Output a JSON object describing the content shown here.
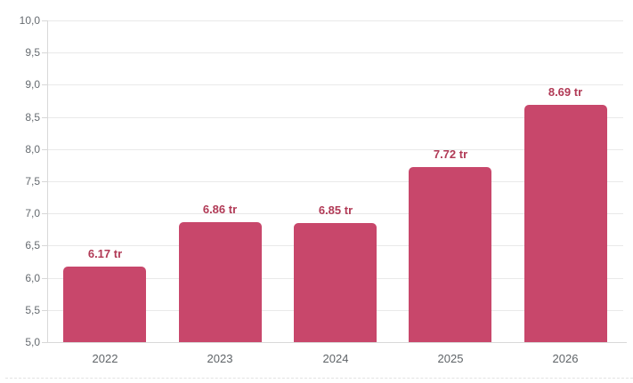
{
  "chart_data": {
    "type": "bar",
    "title": "",
    "xlabel": "",
    "ylabel": "",
    "categories": [
      "2022",
      "2023",
      "2024",
      "2025",
      "2026"
    ],
    "values": [
      6.17,
      6.86,
      6.85,
      7.72,
      8.69
    ],
    "value_labels": [
      "6.17 tr",
      "6.86 tr",
      "6.85 tr",
      "7.72 tr",
      "8.69 tr"
    ],
    "ylim": [
      5.0,
      10.0
    ],
    "ytick_step": 0.5,
    "ytick_labels": [
      "5,0",
      "5,5",
      "6,0",
      "6,5",
      "7,0",
      "7,5",
      "8,0",
      "8,5",
      "9,0",
      "9,5",
      "10,0"
    ],
    "grid": "horizontal-only",
    "legend_position": "none",
    "colors": {
      "bar_fill": "#c8476b",
      "value_label": "#b13a56",
      "axis_label": "#666b70",
      "category_label": "#5f6468",
      "gridline": "#e9e9e9",
      "axis_line": "#d9d9d9"
    }
  }
}
